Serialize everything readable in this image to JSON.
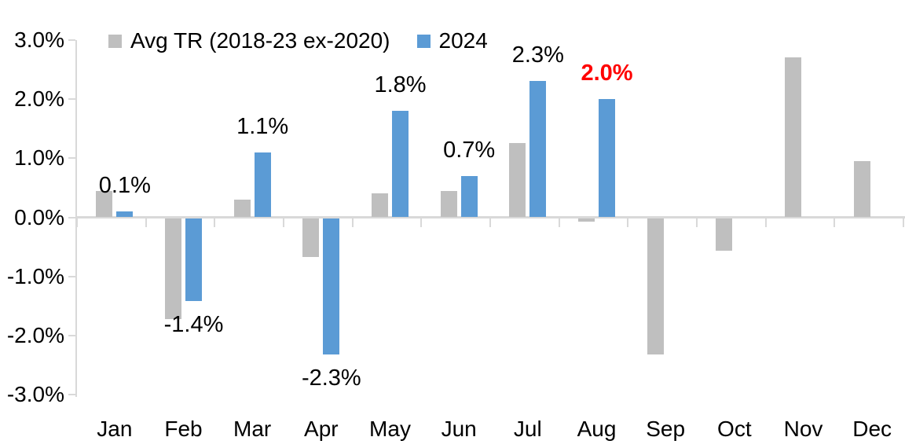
{
  "legend": [
    {
      "label": "Avg TR (2018-23 ex-2020)",
      "color": "#BFBFBF"
    },
    {
      "label": "2024",
      "color": "#5B9BD5"
    }
  ],
  "colors": {
    "gray_series": "#BFBFBF",
    "blue_series": "#5B9BD5",
    "axis": "#D9D9D9",
    "label_text": "#000000",
    "highlight_label": "#FF0000",
    "background": "#FFFFFF"
  },
  "chart_data": {
    "type": "bar",
    "title": "",
    "categories": [
      "Jan",
      "Feb",
      "Mar",
      "Apr",
      "May",
      "Jun",
      "Jul",
      "Aug",
      "Sep",
      "Oct",
      "Nov",
      "Dec"
    ],
    "series": [
      {
        "name": "Avg TR (2018-23 ex-2020)",
        "color": "#BFBFBF",
        "values": [
          0.45,
          -1.7,
          0.3,
          -0.65,
          0.4,
          0.45,
          1.25,
          -0.05,
          -2.3,
          -0.55,
          2.7,
          0.95
        ]
      },
      {
        "name": "2024",
        "color": "#5B9BD5",
        "values": [
          0.1,
          -1.4,
          1.1,
          -2.3,
          1.8,
          0.7,
          2.3,
          2.0,
          null,
          null,
          null,
          null
        ]
      }
    ],
    "data_labels": [
      {
        "month": "Jan",
        "text": "0.1%",
        "color": "#000000",
        "bold": false
      },
      {
        "month": "Feb",
        "text": "-1.4%",
        "color": "#000000",
        "bold": false
      },
      {
        "month": "Mar",
        "text": "1.1%",
        "color": "#000000",
        "bold": false
      },
      {
        "month": "Apr",
        "text": "-2.3%",
        "color": "#000000",
        "bold": false
      },
      {
        "month": "May",
        "text": "1.8%",
        "color": "#000000",
        "bold": false
      },
      {
        "month": "Jun",
        "text": "0.7%",
        "color": "#000000",
        "bold": false
      },
      {
        "month": "Jul",
        "text": "2.3%",
        "color": "#000000",
        "bold": false
      },
      {
        "month": "Aug",
        "text": "2.0%",
        "color": "#FF0000",
        "bold": true
      }
    ],
    "y_axis": {
      "tick_labels": [
        "3.0%",
        "2.0%",
        "1.0%",
        "0.0%",
        "-1.0%",
        "-2.0%",
        "-3.0%"
      ],
      "min": -3.0,
      "max": 3.0,
      "unit": "%"
    },
    "legend_position": "top",
    "grid": false
  }
}
